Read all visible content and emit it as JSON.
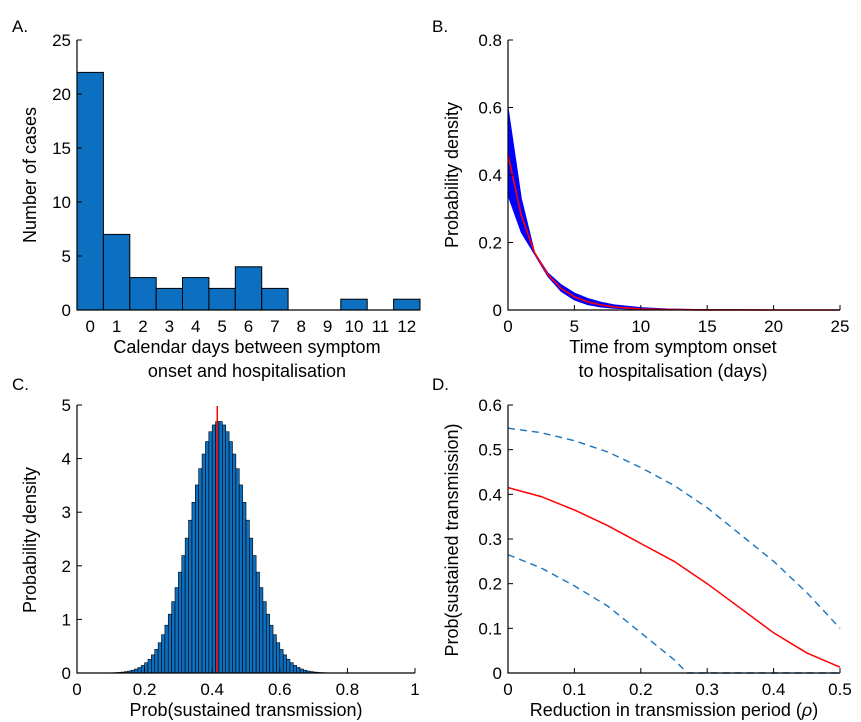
{
  "chart_data": [
    {
      "panel_label": "A.",
      "type": "bar",
      "categories": [
        "0",
        "1",
        "2",
        "3",
        "4",
        "5",
        "6",
        "7",
        "8",
        "9",
        "10",
        "11",
        "12"
      ],
      "values": [
        22,
        7,
        3,
        2,
        3,
        2,
        4,
        2,
        0,
        0,
        1,
        0,
        1
      ],
      "xlabel": "Calendar days between symptom onset and hospitalisation",
      "xlabel_lines": [
        "Calendar days between symptom",
        "onset and hospitalisation"
      ],
      "ylabel": "Number of cases",
      "ylim": [
        0,
        25
      ],
      "yticks": [
        0,
        5,
        10,
        15,
        20,
        25
      ],
      "bar_color": "#0c6fbf"
    },
    {
      "panel_label": "B.",
      "type": "line",
      "xlabel": "Time from symptom onset to hospitalisation (days)",
      "xlabel_lines": [
        "Time from symptom onset",
        "to hospitalisation (days)"
      ],
      "ylabel": "Probability density",
      "xlim": [
        0,
        25
      ],
      "ylim": [
        0,
        0.8
      ],
      "xticks": [
        0,
        5,
        10,
        15,
        20,
        25
      ],
      "yticks": [
        0,
        0.2,
        0.4,
        0.6,
        0.8
      ],
      "ytick_labels": [
        "0",
        "0.2",
        "0.4",
        "0.6",
        "0.8"
      ],
      "series": [
        {
          "role": "mean",
          "color": "#ff0000",
          "x": [
            0,
            1,
            2,
            3,
            4,
            5,
            6,
            7,
            8,
            10,
            12,
            15,
            20,
            25
          ],
          "y": [
            0.46,
            0.28,
            0.17,
            0.105,
            0.064,
            0.039,
            0.024,
            0.015,
            0.009,
            0.003,
            0.0012,
            0.0002,
            0.0,
            0.0
          ]
        },
        {
          "role": "upper",
          "color": "#0000ff",
          "x": [
            0,
            1,
            2,
            3,
            4,
            5,
            6,
            7,
            8,
            10,
            12,
            15,
            20,
            25
          ],
          "y": [
            0.6,
            0.33,
            0.17,
            0.11,
            0.075,
            0.05,
            0.034,
            0.023,
            0.015,
            0.007,
            0.003,
            0.001,
            0.0,
            0.0
          ]
        },
        {
          "role": "lower",
          "color": "#0000ff",
          "x": [
            0,
            1,
            2,
            3,
            4,
            5,
            6,
            7,
            8,
            10,
            12,
            15,
            20,
            25
          ],
          "y": [
            0.34,
            0.23,
            0.165,
            0.1,
            0.055,
            0.03,
            0.016,
            0.009,
            0.005,
            0.0015,
            0.0005,
            0.0,
            0.0,
            0.0
          ]
        }
      ]
    },
    {
      "panel_label": "C.",
      "type": "bar",
      "histogram": {
        "mean": 0.42,
        "sd": 0.085,
        "peak": 4.7,
        "x_start": 0.06,
        "x_end": 0.78,
        "bin_width": 0.01
      },
      "vline_x": 0.415,
      "xlabel": "Prob(sustained transmission)",
      "ylabel": "Probability density",
      "xlim": [
        0,
        1
      ],
      "ylim": [
        0,
        5
      ],
      "xticks": [
        0,
        0.2,
        0.4,
        0.6,
        0.8,
        1
      ],
      "xtick_labels": [
        "0",
        "0.2",
        "0.4",
        "0.6",
        "0.8",
        "1"
      ],
      "yticks": [
        0,
        1,
        2,
        3,
        4,
        5
      ],
      "bar_color": "#0c6fbf",
      "vline_color": "#ff0000"
    },
    {
      "panel_label": "D.",
      "type": "line",
      "xlabel": "Reduction in transmission period (ρ)",
      "xlabel_parts": {
        "before": "Reduction in transmission period (",
        "symbol": "ρ",
        "after": ")"
      },
      "ylabel": "Prob(sustained transmission)",
      "xlim": [
        0,
        0.5
      ],
      "ylim": [
        0,
        0.6
      ],
      "xticks": [
        0,
        0.1,
        0.2,
        0.3,
        0.4,
        0.5
      ],
      "xtick_labels": [
        "0",
        "0.1",
        "0.2",
        "0.3",
        "0.4",
        "0.5"
      ],
      "yticks": [
        0,
        0.1,
        0.2,
        0.3,
        0.4,
        0.5,
        0.6
      ],
      "ytick_labels": [
        "0",
        "0.1",
        "0.2",
        "0.3",
        "0.4",
        "0.5",
        "0.6"
      ],
      "series": [
        {
          "role": "median",
          "color": "#ff0000",
          "style": "solid",
          "x": [
            0,
            0.05,
            0.1,
            0.15,
            0.2,
            0.25,
            0.3,
            0.35,
            0.4,
            0.45,
            0.5
          ],
          "y": [
            0.415,
            0.395,
            0.365,
            0.33,
            0.29,
            0.25,
            0.2,
            0.145,
            0.09,
            0.045,
            0.013
          ]
        },
        {
          "role": "upper",
          "color": "#1a74bd",
          "style": "dashed",
          "x": [
            0,
            0.05,
            0.1,
            0.15,
            0.2,
            0.25,
            0.3,
            0.35,
            0.4,
            0.45,
            0.5
          ],
          "y": [
            0.548,
            0.538,
            0.52,
            0.495,
            0.46,
            0.42,
            0.37,
            0.31,
            0.25,
            0.18,
            0.1
          ]
        },
        {
          "role": "lower",
          "color": "#1a74bd",
          "style": "dashed",
          "x": [
            0,
            0.05,
            0.1,
            0.15,
            0.2,
            0.25,
            0.27,
            0.3,
            0.35,
            0.4,
            0.45,
            0.5
          ],
          "y": [
            0.265,
            0.235,
            0.195,
            0.15,
            0.09,
            0.03,
            0.0,
            0.0,
            0.0,
            0.0,
            0.0,
            0.0
          ]
        }
      ]
    }
  ]
}
